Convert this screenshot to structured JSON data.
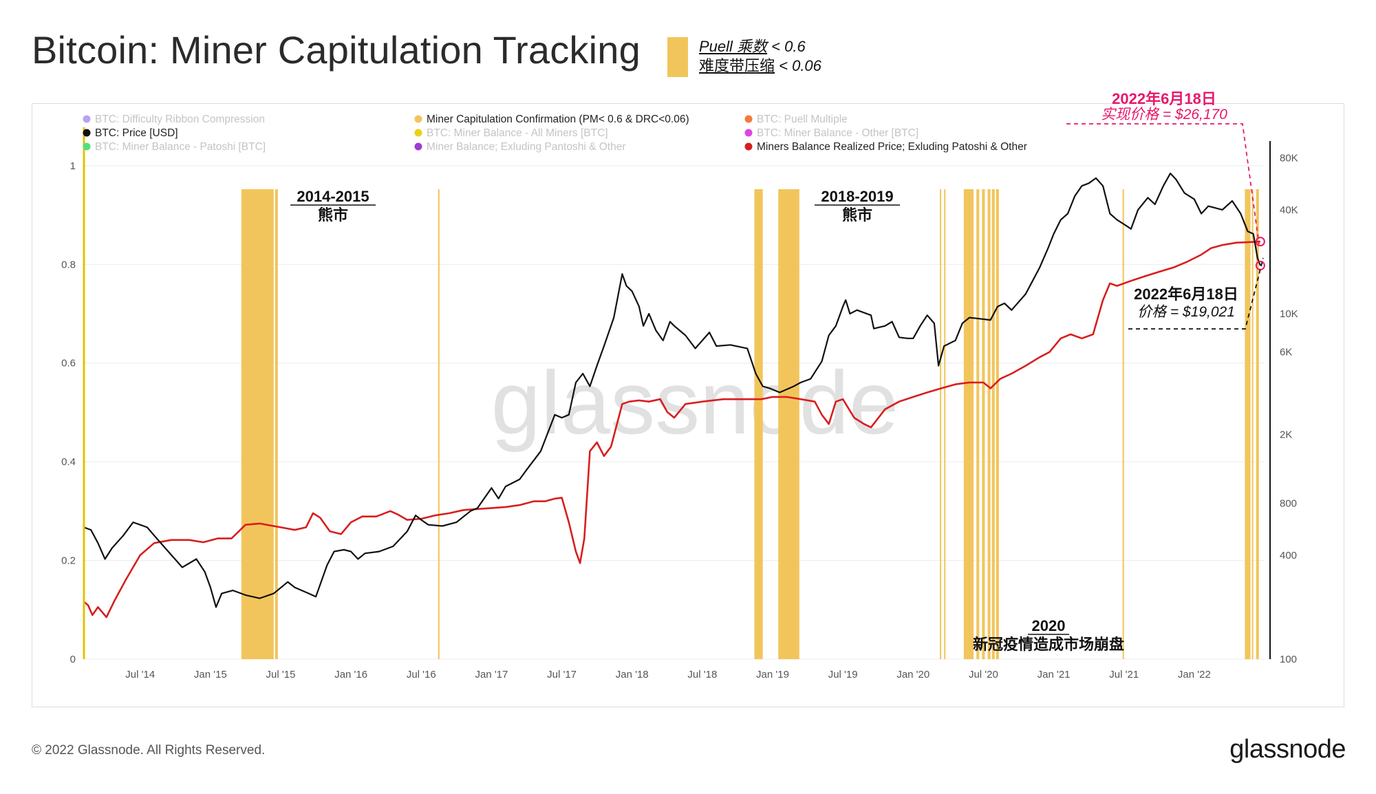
{
  "header": {
    "title": "Bitcoin: Miner Capitulation Tracking",
    "note_line1_main": "Puell 乘数",
    "note_line1_cond": " < 0.6",
    "note_line2_main": "难度带压缩",
    "note_line2_cond": " < 0.06",
    "swatch_color": "#f2c55c"
  },
  "footer": {
    "copyright": "© 2022 Glassnode. All Rights Reserved.",
    "brand": "glassnode"
  },
  "watermark": "glassnode",
  "legend": [
    {
      "label": "BTC: Difficulty Ribbon Compression",
      "color": "#b9a3f0",
      "active": false
    },
    {
      "label": "Miner Capitulation Confirmation (PM< 0.6 & DRC<0.06)",
      "color": "#f2c55c",
      "active": true
    },
    {
      "label": "BTC: Puell Multiple",
      "color": "#f5793a",
      "active": false
    },
    {
      "label": "BTC: Price [USD]",
      "color": "#111111",
      "active": true
    },
    {
      "label": "BTC: Miner Balance - All Miners [BTC]",
      "color": "#e8d21a",
      "active": false
    },
    {
      "label": "BTC: Miner Balance - Other [BTC]",
      "color": "#e043e6",
      "active": false
    },
    {
      "label": "BTC: Miner Balance - Patoshi [BTC]",
      "color": "#52e07a",
      "active": false
    },
    {
      "label": "Miner Balance; Exluding Pantoshi & Other",
      "color": "#9b3fd0",
      "active": false
    },
    {
      "label": "Miners Balance Realized Price; Exluding Patoshi & Other",
      "color": "#d81e1e",
      "active": true
    }
  ],
  "annotations": {
    "bear_2014_year": "2014-2015",
    "bear_2014_label": "熊市",
    "bear_2018_year": "2018-2019",
    "bear_2018_label": "熊市",
    "covid_year": "2020",
    "covid_label": "新冠疫情造成市场崩盘",
    "realized_date": "2022年6月18日",
    "realized_value": "实现价格 = $26,170",
    "price_date": "2022年6月18日",
    "price_value": "价格 = $19,021",
    "realized_color": "#e8176c"
  },
  "chart_data": {
    "type": "line",
    "x_ticks": [
      "Jul '14",
      "Jan '15",
      "Jul '15",
      "Jan '16",
      "Jul '16",
      "Jan '17",
      "Jul '17",
      "Jan '18",
      "Jul '18",
      "Jan '19",
      "Jul '19",
      "Jan '20",
      "Jul '20",
      "Jan '21",
      "Jul '21",
      "Jan '22"
    ],
    "x_range": [
      2014.1,
      2022.5
    ],
    "left_axis": {
      "ticks": [
        "0",
        "0.2",
        "0.4",
        "0.6",
        "0.8",
        "1"
      ],
      "range": [
        0,
        1.05
      ]
    },
    "right_axis": {
      "scale": "log",
      "ticks": [
        "100",
        "400",
        "800",
        "2K",
        "6K",
        "10K",
        "40K",
        "80K"
      ],
      "range": [
        100,
        100000
      ]
    },
    "capitulation_bands": [
      [
        2015.22,
        2015.45
      ],
      [
        2015.46,
        2015.48
      ],
      [
        2016.62,
        2016.63
      ],
      [
        2018.87,
        2018.93
      ],
      [
        2019.04,
        2019.19
      ],
      [
        2020.19,
        2020.2
      ],
      [
        2020.22,
        2020.23
      ],
      [
        2020.36,
        2020.43
      ],
      [
        2020.45,
        2020.47
      ],
      [
        2020.49,
        2020.51
      ],
      [
        2020.53,
        2020.55
      ],
      [
        2020.56,
        2020.58
      ],
      [
        2020.59,
        2020.61
      ],
      [
        2021.49,
        2021.5
      ],
      [
        2022.36,
        2022.4
      ],
      [
        2022.41,
        2022.42
      ],
      [
        2022.44,
        2022.46
      ]
    ],
    "series": [
      {
        "name": "BTC: Price [USD]",
        "color": "#111111",
        "points": [
          [
            2014.1,
            580
          ],
          [
            2014.15,
            560
          ],
          [
            2014.2,
            470
          ],
          [
            2014.25,
            380
          ],
          [
            2014.3,
            440
          ],
          [
            2014.38,
            520
          ],
          [
            2014.45,
            620
          ],
          [
            2014.5,
            600
          ],
          [
            2014.55,
            580
          ],
          [
            2014.6,
            520
          ],
          [
            2014.7,
            420
          ],
          [
            2014.8,
            340
          ],
          [
            2014.9,
            380
          ],
          [
            2014.96,
            320
          ],
          [
            2015.0,
            260
          ],
          [
            2015.04,
            200
          ],
          [
            2015.08,
            240
          ],
          [
            2015.16,
            250
          ],
          [
            2015.25,
            235
          ],
          [
            2015.35,
            225
          ],
          [
            2015.45,
            240
          ],
          [
            2015.55,
            280
          ],
          [
            2015.6,
            260
          ],
          [
            2015.7,
            240
          ],
          [
            2015.75,
            230
          ],
          [
            2015.83,
            350
          ],
          [
            2015.88,
            420
          ],
          [
            2015.95,
            430
          ],
          [
            2016.0,
            420
          ],
          [
            2016.05,
            380
          ],
          [
            2016.1,
            410
          ],
          [
            2016.2,
            420
          ],
          [
            2016.3,
            450
          ],
          [
            2016.4,
            550
          ],
          [
            2016.46,
            680
          ],
          [
            2016.5,
            640
          ],
          [
            2016.55,
            600
          ],
          [
            2016.65,
            590
          ],
          [
            2016.75,
            620
          ],
          [
            2016.85,
            720
          ],
          [
            2016.9,
            750
          ],
          [
            2017.0,
            980
          ],
          [
            2017.05,
            850
          ],
          [
            2017.1,
            1000
          ],
          [
            2017.2,
            1100
          ],
          [
            2017.25,
            1250
          ],
          [
            2017.35,
            1600
          ],
          [
            2017.45,
            2600
          ],
          [
            2017.5,
            2500
          ],
          [
            2017.55,
            2600
          ],
          [
            2017.6,
            4000
          ],
          [
            2017.65,
            4500
          ],
          [
            2017.7,
            3800
          ],
          [
            2017.75,
            5000
          ],
          [
            2017.8,
            6500
          ],
          [
            2017.87,
            9500
          ],
          [
            2017.93,
            17000
          ],
          [
            2017.96,
            14500
          ],
          [
            2018.0,
            13500
          ],
          [
            2018.05,
            11000
          ],
          [
            2018.08,
            8500
          ],
          [
            2018.12,
            10000
          ],
          [
            2018.17,
            8000
          ],
          [
            2018.22,
            7000
          ],
          [
            2018.27,
            9000
          ],
          [
            2018.3,
            8500
          ],
          [
            2018.38,
            7500
          ],
          [
            2018.45,
            6300
          ],
          [
            2018.55,
            7800
          ],
          [
            2018.6,
            6500
          ],
          [
            2018.7,
            6600
          ],
          [
            2018.82,
            6300
          ],
          [
            2018.88,
            4500
          ],
          [
            2018.93,
            3800
          ],
          [
            2018.98,
            3700
          ],
          [
            2019.05,
            3500
          ],
          [
            2019.15,
            3800
          ],
          [
            2019.2,
            4000
          ],
          [
            2019.27,
            4200
          ],
          [
            2019.35,
            5300
          ],
          [
            2019.4,
            7500
          ],
          [
            2019.45,
            8500
          ],
          [
            2019.5,
            11000
          ],
          [
            2019.52,
            12000
          ],
          [
            2019.55,
            10000
          ],
          [
            2019.6,
            10500
          ],
          [
            2019.7,
            9800
          ],
          [
            2019.72,
            8200
          ],
          [
            2019.8,
            8500
          ],
          [
            2019.85,
            9000
          ],
          [
            2019.9,
            7300
          ],
          [
            2019.96,
            7200
          ],
          [
            2020.0,
            7200
          ],
          [
            2020.05,
            8500
          ],
          [
            2020.1,
            9800
          ],
          [
            2020.15,
            8800
          ],
          [
            2020.18,
            5000
          ],
          [
            2020.22,
            6500
          ],
          [
            2020.3,
            7000
          ],
          [
            2020.35,
            8800
          ],
          [
            2020.4,
            9500
          ],
          [
            2020.45,
            9400
          ],
          [
            2020.55,
            9200
          ],
          [
            2020.6,
            11000
          ],
          [
            2020.65,
            11500
          ],
          [
            2020.7,
            10500
          ],
          [
            2020.8,
            13000
          ],
          [
            2020.85,
            15500
          ],
          [
            2020.9,
            18500
          ],
          [
            2020.96,
            24000
          ],
          [
            2021.0,
            29000
          ],
          [
            2021.05,
            35000
          ],
          [
            2021.1,
            38000
          ],
          [
            2021.15,
            48000
          ],
          [
            2021.2,
            55000
          ],
          [
            2021.25,
            57000
          ],
          [
            2021.3,
            61000
          ],
          [
            2021.35,
            55000
          ],
          [
            2021.4,
            38000
          ],
          [
            2021.45,
            35000
          ],
          [
            2021.5,
            33000
          ],
          [
            2021.55,
            31000
          ],
          [
            2021.6,
            40000
          ],
          [
            2021.67,
            47000
          ],
          [
            2021.72,
            43000
          ],
          [
            2021.78,
            55000
          ],
          [
            2021.83,
            65000
          ],
          [
            2021.87,
            60000
          ],
          [
            2021.93,
            50000
          ],
          [
            2022.0,
            46000
          ],
          [
            2022.05,
            38000
          ],
          [
            2022.1,
            42000
          ],
          [
            2022.2,
            40000
          ],
          [
            2022.27,
            45000
          ],
          [
            2022.33,
            38000
          ],
          [
            2022.38,
            30000
          ],
          [
            2022.42,
            29000
          ],
          [
            2022.45,
            21000
          ],
          [
            2022.47,
            19021
          ]
        ]
      },
      {
        "name": "Miners Balance Realized Price; Exluding Patoshi & Other",
        "color": "#d81e1e",
        "points": [
          [
            2014.1,
            215
          ],
          [
            2014.13,
            205
          ],
          [
            2014.16,
            180
          ],
          [
            2014.2,
            200
          ],
          [
            2014.26,
            175
          ],
          [
            2014.32,
            220
          ],
          [
            2014.4,
            290
          ],
          [
            2014.5,
            400
          ],
          [
            2014.6,
            470
          ],
          [
            2014.72,
            490
          ],
          [
            2014.85,
            490
          ],
          [
            2014.95,
            475
          ],
          [
            2015.05,
            500
          ],
          [
            2015.15,
            500
          ],
          [
            2015.25,
            600
          ],
          [
            2015.35,
            610
          ],
          [
            2015.5,
            580
          ],
          [
            2015.6,
            560
          ],
          [
            2015.68,
            580
          ],
          [
            2015.73,
            700
          ],
          [
            2015.78,
            660
          ],
          [
            2015.85,
            550
          ],
          [
            2015.93,
            530
          ],
          [
            2016.0,
            620
          ],
          [
            2016.08,
            670
          ],
          [
            2016.18,
            670
          ],
          [
            2016.28,
            720
          ],
          [
            2016.33,
            690
          ],
          [
            2016.4,
            640
          ],
          [
            2016.5,
            650
          ],
          [
            2016.6,
            680
          ],
          [
            2016.7,
            700
          ],
          [
            2016.8,
            730
          ],
          [
            2016.9,
            740
          ],
          [
            2017.0,
            750
          ],
          [
            2017.1,
            760
          ],
          [
            2017.2,
            780
          ],
          [
            2017.3,
            820
          ],
          [
            2017.38,
            820
          ],
          [
            2017.45,
            850
          ],
          [
            2017.5,
            860
          ],
          [
            2017.55,
            620
          ],
          [
            2017.6,
            420
          ],
          [
            2017.63,
            360
          ],
          [
            2017.66,
            500
          ],
          [
            2017.7,
            1600
          ],
          [
            2017.75,
            1800
          ],
          [
            2017.8,
            1500
          ],
          [
            2017.85,
            1700
          ],
          [
            2017.93,
            3000
          ],
          [
            2017.98,
            3100
          ],
          [
            2018.05,
            3150
          ],
          [
            2018.12,
            3100
          ],
          [
            2018.2,
            3200
          ],
          [
            2018.25,
            2700
          ],
          [
            2018.3,
            2500
          ],
          [
            2018.38,
            3000
          ],
          [
            2018.5,
            3100
          ],
          [
            2018.65,
            3200
          ],
          [
            2018.8,
            3200
          ],
          [
            2018.92,
            3200
          ],
          [
            2019.0,
            3300
          ],
          [
            2019.1,
            3300
          ],
          [
            2019.2,
            3200
          ],
          [
            2019.3,
            3100
          ],
          [
            2019.35,
            2600
          ],
          [
            2019.4,
            2300
          ],
          [
            2019.45,
            3100
          ],
          [
            2019.5,
            3200
          ],
          [
            2019.58,
            2500
          ],
          [
            2019.65,
            2300
          ],
          [
            2019.7,
            2200
          ],
          [
            2019.8,
            2800
          ],
          [
            2019.9,
            3100
          ],
          [
            2020.0,
            3300
          ],
          [
            2020.1,
            3500
          ],
          [
            2020.2,
            3700
          ],
          [
            2020.3,
            3900
          ],
          [
            2020.4,
            4000
          ],
          [
            2020.5,
            4000
          ],
          [
            2020.55,
            3700
          ],
          [
            2020.62,
            4200
          ],
          [
            2020.7,
            4500
          ],
          [
            2020.8,
            5000
          ],
          [
            2020.9,
            5600
          ],
          [
            2020.97,
            6000
          ],
          [
            2021.05,
            7200
          ],
          [
            2021.12,
            7600
          ],
          [
            2021.2,
            7200
          ],
          [
            2021.28,
            7600
          ],
          [
            2021.35,
            12000
          ],
          [
            2021.4,
            15000
          ],
          [
            2021.45,
            14500
          ],
          [
            2021.55,
            15500
          ],
          [
            2021.65,
            16500
          ],
          [
            2021.75,
            17500
          ],
          [
            2021.85,
            18500
          ],
          [
            2021.95,
            20000
          ],
          [
            2022.05,
            22000
          ],
          [
            2022.12,
            24000
          ],
          [
            2022.2,
            25000
          ],
          [
            2022.3,
            25800
          ],
          [
            2022.4,
            26000
          ],
          [
            2022.47,
            26170
          ]
        ]
      }
    ]
  }
}
